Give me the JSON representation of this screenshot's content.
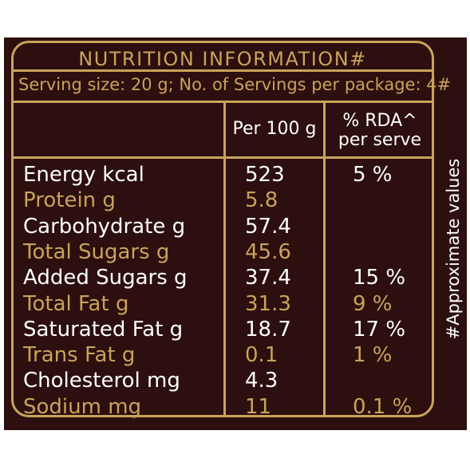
{
  "title": "NUTRITION INFORMATION#",
  "serving": "Serving size: 20 g; No. of Servings per package: 4#",
  "columns": {
    "per100": "Per 100 g",
    "rda_line1": "% RDA^",
    "rda_line2": "per serve"
  },
  "rows": [
    {
      "name": "Energy kcal",
      "per100": "523",
      "rda": "5 %"
    },
    {
      "name": "Protein g",
      "per100": "5.8",
      "rda": ""
    },
    {
      "name": "Carbohydrate g",
      "per100": "57.4",
      "rda": ""
    },
    {
      "name": "Total Sugars g",
      "per100": "45.6",
      "rda": ""
    },
    {
      "name": "Added Sugars g",
      "per100": "37.4",
      "rda": "15 %"
    },
    {
      "name": "Total Fat g",
      "per100": "31.3",
      "rda": "9 %"
    },
    {
      "name": "Saturated Fat g",
      "per100": "18.7",
      "rda": "17 %"
    },
    {
      "name": "Trans Fat g",
      "per100": "0.1",
      "rda": "1 %"
    },
    {
      "name": "Cholesterol mg",
      "per100": "4.3",
      "rda": ""
    },
    {
      "name": "Sodium mg",
      "per100": "11",
      "rda": "0.1 %"
    }
  ],
  "side_note": "#Approximate values",
  "colors": {
    "background": "#2c0f0e",
    "gold": "#c9a35a",
    "white": "#ffffff"
  }
}
